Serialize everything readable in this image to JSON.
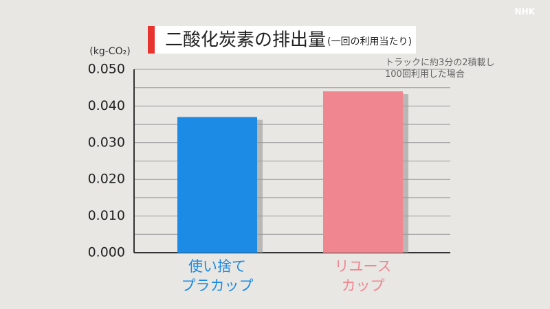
{
  "chart_data": {
    "type": "bar",
    "title": "二酸化炭素の排出量",
    "subtitle": "(一回の利用当たり)",
    "y_label": "(kg-CO₂)",
    "annotation": "トラックに約3分の2積載し\n100回利用した場合",
    "watermark": "NHK",
    "categories": [
      "使い捨て\nプラカップ",
      "リユース\nカップ"
    ],
    "series": [
      {
        "name": null,
        "colors": [
          "#1b8be6",
          "#ef8690"
        ],
        "values": [
          0.037,
          0.044
        ]
      }
    ],
    "ylim": [
      0,
      0.05
    ],
    "yticks": [
      {
        "value": 0,
        "label": "0.000"
      },
      {
        "value": 0.01,
        "label": "0.010"
      },
      {
        "value": 0.02,
        "label": "0.020"
      },
      {
        "value": 0.03,
        "label": "0.030"
      },
      {
        "value": 0.04,
        "label": "0.040"
      },
      {
        "value": 0.05,
        "label": "0.050"
      }
    ],
    "minor_yticks": [
      0.005,
      0.015,
      0.025,
      0.035,
      0.045
    ],
    "grid": true
  }
}
